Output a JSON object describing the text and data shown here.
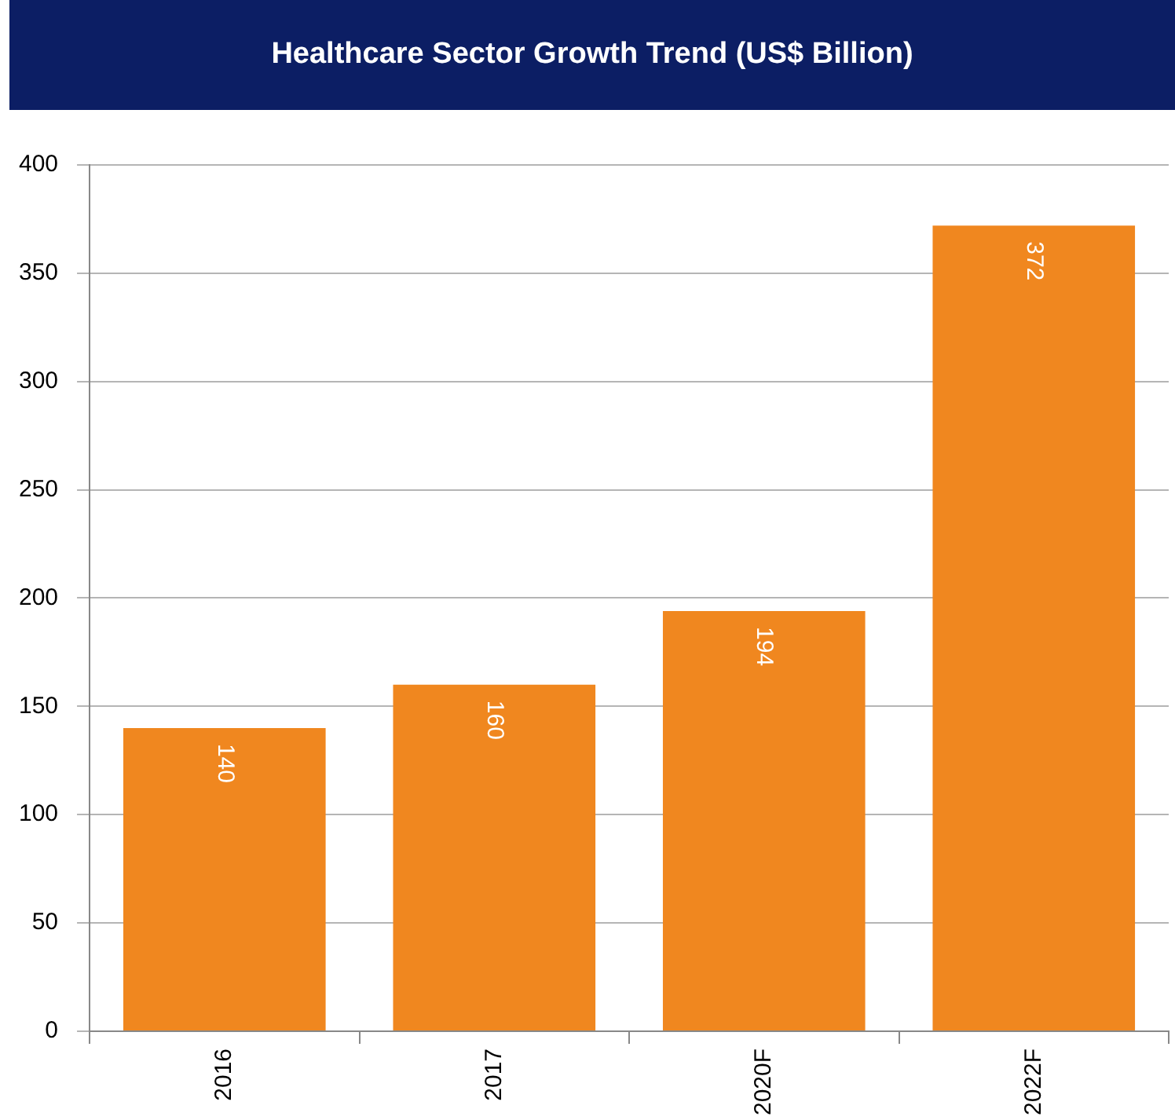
{
  "chart_data": {
    "type": "bar",
    "title": "Healthcare Sector Growth Trend (US$ Billion)",
    "categories": [
      "2016",
      "2017",
      "2020F",
      "2022F"
    ],
    "values": [
      140,
      160,
      194,
      372
    ],
    "color": "#f0871f",
    "ylim": [
      0,
      400
    ],
    "yticks": [
      0,
      50,
      100,
      150,
      200,
      250,
      300,
      350,
      400
    ],
    "grid": "y",
    "data_labels": true
  }
}
